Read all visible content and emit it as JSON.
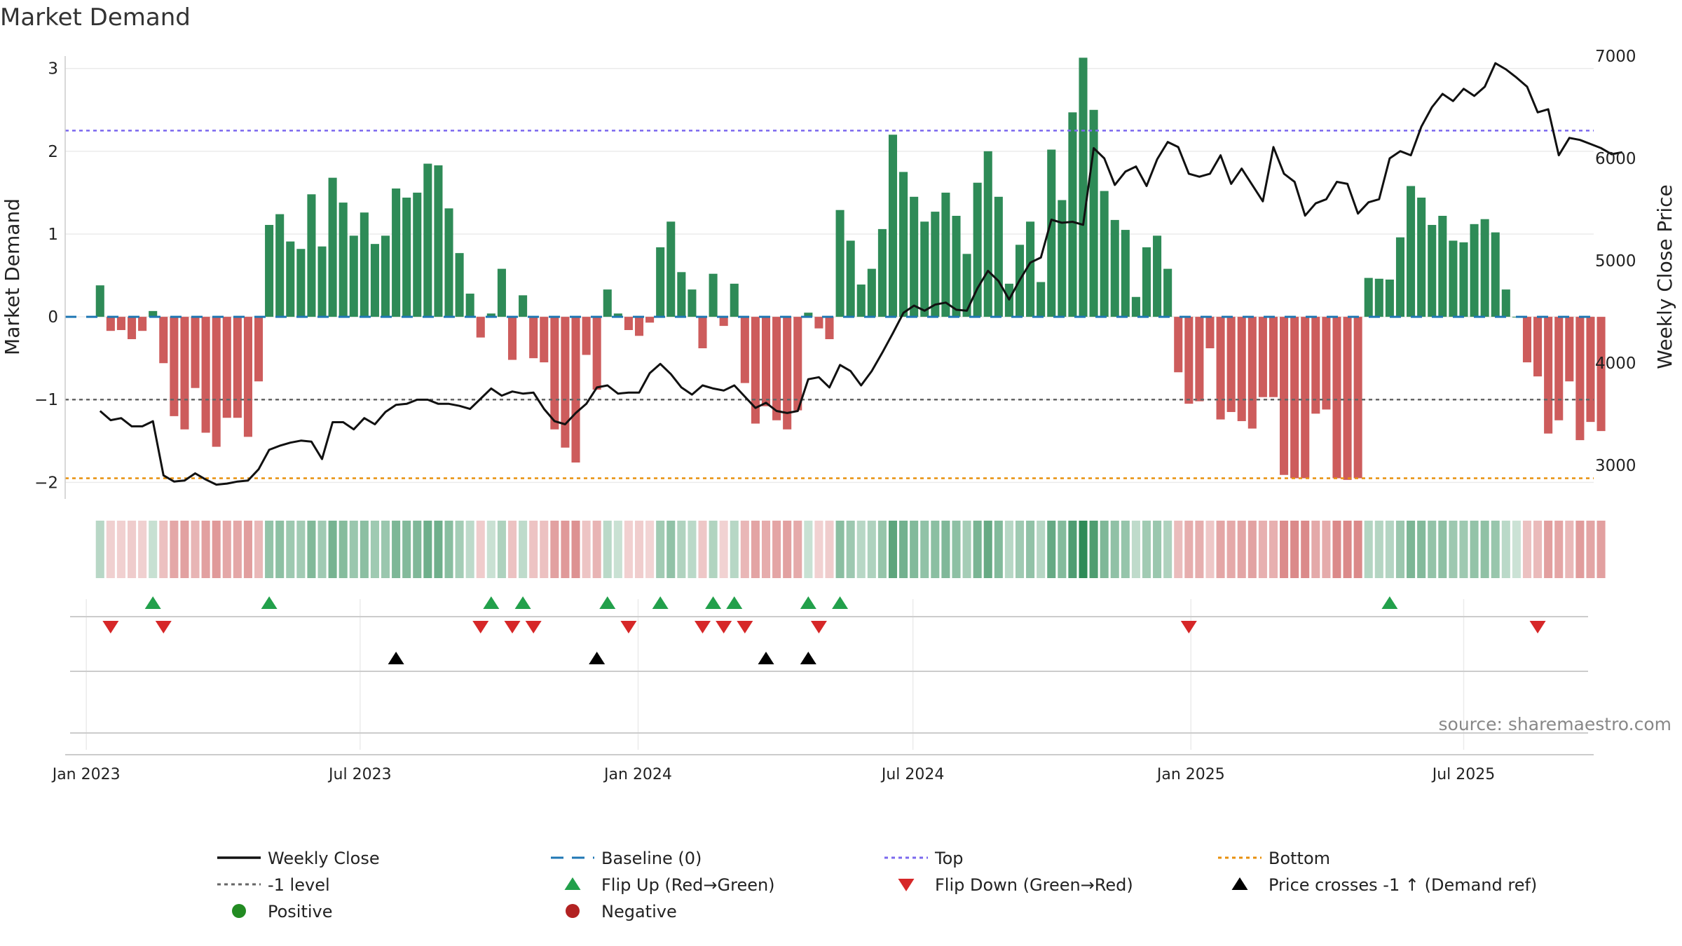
{
  "chart_data": {
    "type": "bar",
    "title": "Market Demand",
    "ylabel_left": "Market Demand",
    "ylabel_right": "Weekly Close Price",
    "source": "source: sharemaestro.com",
    "ylim_left": [
      -2.2,
      3.15
    ],
    "yticks_left": [
      -2,
      -1,
      0,
      1,
      2,
      3
    ],
    "ylim_right": [
      2670,
      7000
    ],
    "yticks_right": [
      3000,
      4000,
      5000,
      6000,
      7000
    ],
    "x_range_weeks": [
      -3.3,
      141.3
    ],
    "x_ticks": [
      {
        "label": "Jan 2023",
        "week": -1.3
      },
      {
        "label": "Jul 2023",
        "week": 24.6
      },
      {
        "label": "Jan 2024",
        "week": 50.9
      },
      {
        "label": "Jul 2024",
        "week": 76.9
      },
      {
        "label": "Jan 2025",
        "week": 103.2
      },
      {
        "label": "Jul 2025",
        "week": 129.0
      }
    ],
    "demand": [
      0.38,
      -0.17,
      -0.16,
      -0.27,
      -0.17,
      0.07,
      -0.56,
      -1.2,
      -1.36,
      -0.86,
      -1.4,
      -1.57,
      -1.22,
      -1.22,
      -1.45,
      -0.78,
      1.11,
      1.24,
      0.91,
      0.82,
      1.48,
      0.85,
      1.68,
      1.38,
      0.98,
      1.26,
      0.88,
      0.98,
      1.55,
      1.44,
      1.5,
      1.85,
      1.83,
      1.31,
      0.77,
      0.28,
      -0.25,
      0.04,
      0.58,
      -0.52,
      0.26,
      -0.5,
      -0.55,
      -1.36,
      -1.58,
      -1.76,
      -0.46,
      -0.88,
      0.33,
      0.04,
      -0.16,
      -0.23,
      -0.07,
      0.84,
      1.15,
      0.54,
      0.33,
      -0.38,
      0.52,
      -0.11,
      0.4,
      -0.8,
      -1.29,
      -1.08,
      -1.25,
      -1.36,
      -1.13,
      0.05,
      -0.14,
      -0.27,
      1.29,
      0.92,
      0.39,
      0.58,
      1.06,
      2.2,
      1.75,
      1.45,
      1.15,
      1.27,
      1.5,
      1.22,
      0.76,
      1.62,
      2.0,
      1.45,
      0.4,
      0.87,
      1.15,
      0.42,
      2.02,
      1.41,
      2.47,
      3.13,
      2.5,
      1.52,
      1.17,
      1.05,
      0.24,
      0.84,
      0.98,
      0.58,
      -0.67,
      -1.05,
      -1.02,
      -0.38,
      -1.24,
      -1.15,
      -1.26,
      -1.35,
      -0.97,
      -0.97,
      -1.91,
      -1.95,
      -1.95,
      -1.17,
      -1.12,
      -1.95,
      -1.97,
      -1.95,
      0.47,
      0.46,
      0.45,
      0.96,
      1.58,
      1.44,
      1.11,
      1.22,
      0.92,
      0.9,
      1.12,
      1.18,
      1.02,
      0.33,
      0.0,
      -0.55,
      -0.72,
      -1.41,
      -1.25,
      -0.78,
      -1.49,
      -1.27,
      -1.38
    ],
    "price": [
      3530,
      3440,
      3460,
      3380,
      3380,
      3430,
      2900,
      2840,
      2850,
      2920,
      2860,
      2810,
      2820,
      2840,
      2850,
      2960,
      3150,
      3190,
      3220,
      3240,
      3230,
      3060,
      3420,
      3420,
      3350,
      3460,
      3400,
      3520,
      3590,
      3600,
      3640,
      3640,
      3600,
      3600,
      3580,
      3550,
      3650,
      3750,
      3680,
      3720,
      3700,
      3710,
      3550,
      3430,
      3400,
      3510,
      3600,
      3760,
      3780,
      3700,
      3710,
      3710,
      3900,
      3990,
      3890,
      3760,
      3690,
      3780,
      3750,
      3730,
      3780,
      3670,
      3560,
      3610,
      3530,
      3510,
      3530,
      3840,
      3860,
      3760,
      3980,
      3920,
      3780,
      3920,
      4100,
      4290,
      4490,
      4560,
      4510,
      4570,
      4590,
      4520,
      4510,
      4730,
      4900,
      4800,
      4620,
      4810,
      4980,
      5030,
      5400,
      5370,
      5380,
      5350,
      6100,
      6000,
      5740,
      5870,
      5920,
      5730,
      5990,
      6160,
      6110,
      5850,
      5820,
      5850,
      6030,
      5750,
      5900,
      5740,
      5580,
      6110,
      5850,
      5770,
      5440,
      5560,
      5600,
      5770,
      5750,
      5460,
      5570,
      5600,
      6000,
      6070,
      6030,
      6310,
      6500,
      6630,
      6560,
      6680,
      6610,
      6700,
      6930,
      6870,
      6790,
      6700,
      6450,
      6480,
      6030,
      6200,
      6180,
      6140,
      6100,
      6040,
      6060
    ],
    "bottom_level": -1.95,
    "top_level": 2.25,
    "minus_one_level": -1.0,
    "baseline_level": 0.0,
    "flip_up_weeks": [
      5,
      16,
      37,
      40,
      48,
      53,
      58,
      60,
      67,
      70,
      122
    ],
    "flip_down_weeks": [
      1,
      6,
      36,
      39,
      41,
      50,
      57,
      59,
      61,
      68,
      103,
      136
    ],
    "price_cross_weeks": [
      28,
      47,
      63,
      67
    ],
    "colors": {
      "positive_bar": "#2e8b57",
      "negative_bar": "#cd5c5c",
      "price_line": "#111111",
      "baseline": "#1f77b4",
      "top": "#7b68ee",
      "bottom": "#e8900c",
      "minus_one": "#666666",
      "flip_up": "#22a04b",
      "flip_down": "#d62728",
      "cross": "#000000",
      "legend_positive": "#228b22",
      "legend_negative": "#b22222",
      "grid": "#ebebeb",
      "axis_text": "#222222"
    },
    "legend": [
      {
        "key": "close",
        "label": "Weekly Close"
      },
      {
        "key": "baseline",
        "label": "Baseline (0)"
      },
      {
        "key": "top",
        "label": "Top"
      },
      {
        "key": "bottom",
        "label": "Bottom"
      },
      {
        "key": "minus1",
        "label": "-1 level"
      },
      {
        "key": "flipup",
        "label": "Flip Up (Red→Green)"
      },
      {
        "key": "flipdown",
        "label": "Flip Down (Green→Red)"
      },
      {
        "key": "cross",
        "label": "Price crosses -1 ↑ (Demand ref)"
      },
      {
        "key": "positive",
        "label": "Positive"
      },
      {
        "key": "negative",
        "label": "Negative"
      }
    ]
  }
}
